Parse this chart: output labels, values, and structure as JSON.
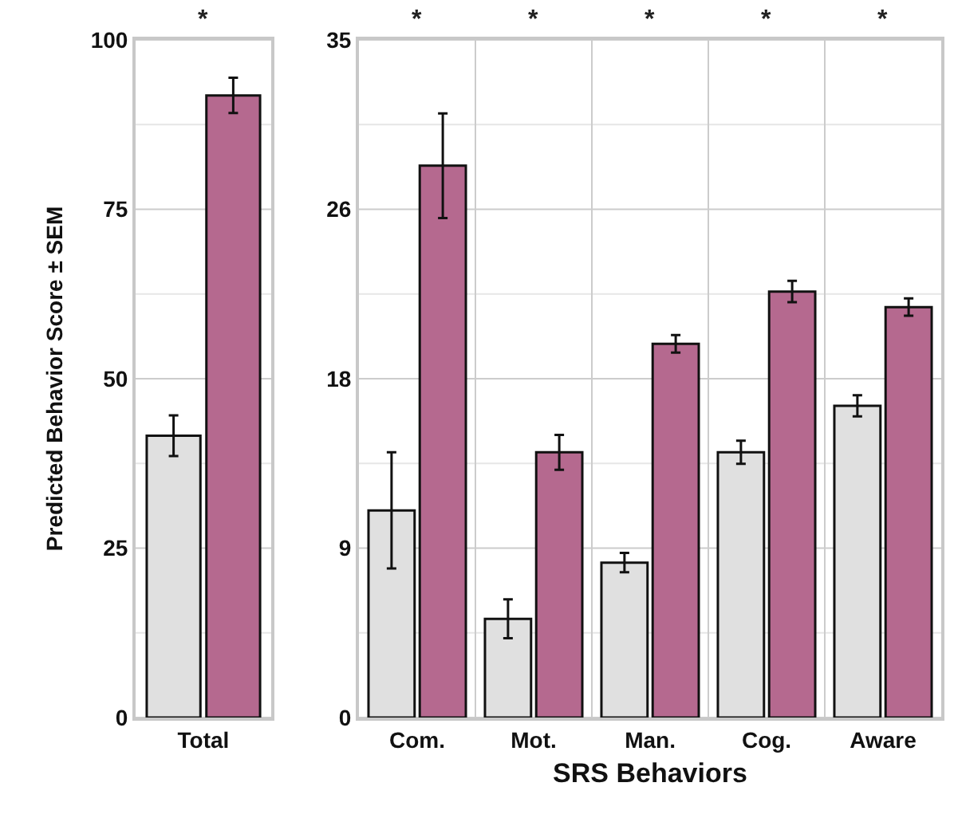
{
  "chart_data": [
    {
      "type": "bar",
      "ylabel": "Predicted Behavior Score ± SEM",
      "categories": [
        "Total"
      ],
      "series": [
        {
          "color": "#e0e0e0",
          "values": [
            41.6
          ],
          "errors": [
            3.0
          ]
        },
        {
          "color": "#b5698f",
          "values": [
            91.8
          ],
          "errors": [
            2.6
          ]
        }
      ],
      "ylim": [
        0,
        100
      ],
      "yticks": [
        0,
        25,
        50,
        75,
        100
      ],
      "grid": "y",
      "annotations": [
        "*"
      ]
    },
    {
      "type": "bar",
      "xlabel": "SRS Behaviors",
      "categories": [
        "Com.",
        "Mot.",
        "Man.",
        "Cog.",
        "Aware"
      ],
      "series": [
        {
          "color": "#e0e0e0",
          "values": [
            10.7,
            5.1,
            8.0,
            13.7,
            16.1
          ],
          "errors": [
            3.0,
            1.0,
            0.5,
            0.6,
            0.55
          ]
        },
        {
          "color": "#b5698f",
          "values": [
            28.5,
            13.7,
            19.3,
            22.0,
            21.2
          ],
          "errors": [
            2.7,
            0.9,
            0.45,
            0.55,
            0.45
          ]
        }
      ],
      "ylim": [
        0,
        35
      ],
      "yticks": [
        0,
        {
          "value": 8.75,
          "label": "9"
        },
        {
          "value": 17.5,
          "label": "18"
        },
        {
          "value": 26.25,
          "label": "26"
        },
        35
      ],
      "grid": true,
      "annotations": [
        "*",
        "*",
        "*",
        "*",
        "*"
      ]
    }
  ]
}
